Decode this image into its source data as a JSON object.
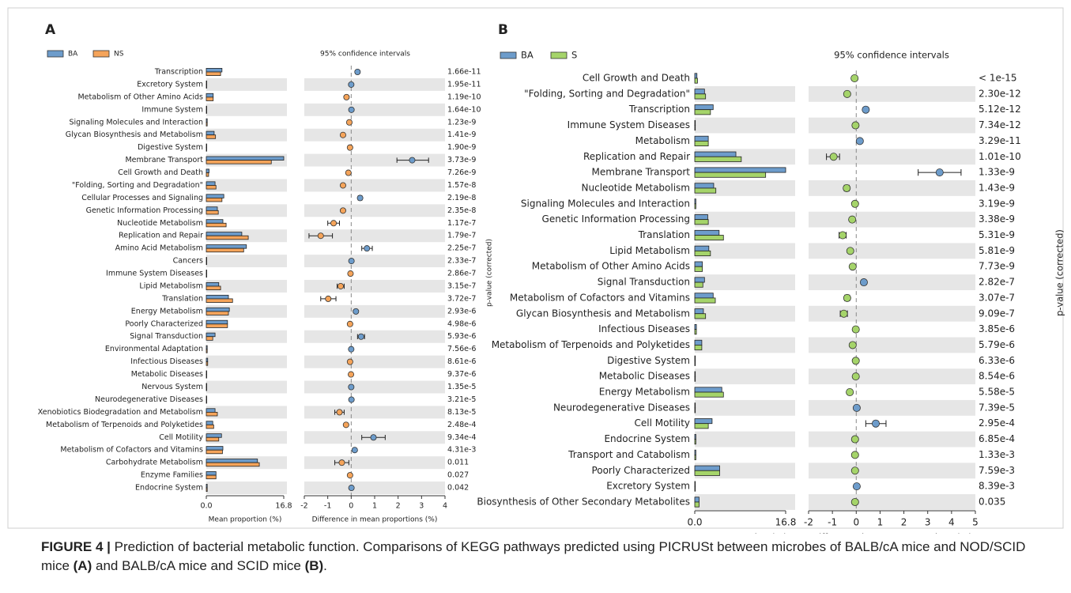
{
  "chart_data": [
    {
      "type": "extended_error_bar",
      "panel_label": "A",
      "categories": [
        "Transcription",
        "Excretory System",
        "Metabolism of Other Amino Acids",
        "Immune System",
        "Signaling Molecules and Interaction",
        "Glycan Biosynthesis and Metabolism",
        "Digestive System",
        "Membrane Transport",
        "Cell Growth and Death",
        "\"Folding, Sorting and Degradation\"",
        "Cellular Processes and Signaling",
        "Genetic Information Processing",
        "Nucleotide Metabolism",
        "Replication and Repair",
        "Amino Acid Metabolism",
        "Cancers",
        "Immune System Diseases",
        "Lipid Metabolism",
        "Translation",
        "Energy Metabolism",
        "Poorly Characterized",
        "Signal Transduction",
        "Environmental Adaptation",
        "Infectious Diseases",
        "Metabolic Diseases",
        "Nervous System",
        "Neurodegenerative Diseases",
        "Xenobiotics Biodegradation and Metabolism",
        "Metabolism of Terpenoids and Polyketides",
        "Cell Motility",
        "Metabolism of Cofactors and Vitamins",
        "Carbohydrate Metabolism",
        "Enzyme Families",
        "Endocrine System"
      ],
      "series": [
        {
          "name": "BA",
          "color": "#6d9ccb",
          "values": [
            3.4,
            0.1,
            1.5,
            0.1,
            0.2,
            1.7,
            0.1,
            16.8,
            0.6,
            1.9,
            3.8,
            2.4,
            3.6,
            7.7,
            8.7,
            0.1,
            0.1,
            2.7,
            4.8,
            5.0,
            4.6,
            1.9,
            0.2,
            0.3,
            0.1,
            0.1,
            0.1,
            1.9,
            1.4,
            3.3,
            3.6,
            11.1,
            2.1,
            0.2
          ]
        },
        {
          "name": "NS",
          "color": "#f5a45a",
          "values": [
            3.1,
            0.1,
            1.5,
            0.1,
            0.2,
            2.0,
            0.1,
            14.1,
            0.5,
            2.1,
            3.4,
            2.6,
            4.3,
            9.1,
            8.1,
            0.1,
            0.1,
            3.1,
            5.7,
            4.8,
            4.6,
            1.4,
            0.2,
            0.3,
            0.1,
            0.1,
            0.1,
            2.4,
            1.6,
            2.7,
            3.5,
            11.5,
            2.1,
            0.2
          ]
        }
      ],
      "xlim": [
        0,
        16.8
      ],
      "xticks": [
        {
          "value": 0,
          "label": "0.0"
        },
        16.8
      ],
      "xlabel": "Mean proportion (%)",
      "difference": {
        "title": "95% confidence intervals",
        "values": [
          0.27,
          0.0,
          -0.2,
          0.01,
          -0.08,
          -0.35,
          -0.05,
          2.6,
          -0.12,
          -0.35,
          0.38,
          -0.35,
          -0.75,
          -1.3,
          0.67,
          0.01,
          -0.03,
          -0.45,
          -0.98,
          0.2,
          -0.05,
          0.42,
          0.0,
          -0.05,
          -0.01,
          0.0,
          0.01,
          -0.5,
          -0.22,
          0.95,
          0.15,
          -0.4,
          -0.05,
          0.01
        ],
        "lower": [
          0.22,
          -0.02,
          -0.25,
          -0.01,
          -0.11,
          -0.4,
          -0.08,
          1.95,
          -0.15,
          -0.4,
          0.3,
          -0.4,
          -1.0,
          -1.8,
          0.45,
          -0.01,
          -0.06,
          -0.6,
          -1.3,
          0.15,
          -0.1,
          0.27,
          -0.02,
          -0.08,
          -0.03,
          -0.02,
          -0.01,
          -0.7,
          -0.27,
          0.45,
          0.1,
          -0.7,
          -0.08,
          -0.01
        ],
        "upper": [
          0.32,
          0.02,
          -0.15,
          0.03,
          -0.05,
          -0.3,
          -0.02,
          3.3,
          -0.09,
          -0.3,
          0.46,
          -0.3,
          -0.5,
          -0.8,
          0.9,
          0.03,
          0.0,
          -0.3,
          -0.65,
          0.25,
          0.0,
          0.57,
          0.02,
          -0.02,
          0.01,
          0.02,
          0.03,
          -0.3,
          -0.17,
          1.45,
          0.2,
          -0.1,
          -0.02,
          0.03
        ],
        "xlim": [
          -2,
          4
        ],
        "xticks": [
          -2,
          -1,
          0,
          1,
          2,
          3,
          4
        ],
        "xlabel": "Difference in mean proportions (%)"
      },
      "p_values": [
        "1.66e-11",
        "1.95e-11",
        "1.19e-10",
        "1.64e-10",
        "1.23e-9",
        "1.41e-9",
        "1.90e-9",
        "3.73e-9",
        "7.26e-9",
        "1.57e-8",
        "2.19e-8",
        "2.35e-8",
        "1.17e-7",
        "1.79e-7",
        "2.25e-7",
        "2.33e-7",
        "2.86e-7",
        "3.15e-7",
        "3.72e-7",
        "2.93e-6",
        "4.98e-6",
        "5.93e-6",
        "7.56e-6",
        "8.61e-6",
        "9.37e-6",
        "1.35e-5",
        "3.21e-5",
        "8.13e-5",
        "2.48e-4",
        "9.34e-4",
        "4.31e-3",
        "0.011",
        "0.027",
        "0.042"
      ],
      "p_label": "p-value (corrected)"
    },
    {
      "type": "extended_error_bar",
      "panel_label": "B",
      "categories": [
        "Cell Growth and Death",
        "\"Folding, Sorting and Degradation\"",
        "Transcription",
        "Immune System Diseases",
        "Metabolism",
        "Replication and Repair",
        "Membrane Transport",
        "Nucleotide Metabolism",
        "Signaling Molecules and Interaction",
        "Genetic Information Processing",
        "Translation",
        "Lipid Metabolism",
        "Metabolism of Other Amino Acids",
        "Signal Transduction",
        "Metabolism of Cofactors and Vitamins",
        "Glycan Biosynthesis and Metabolism",
        "Infectious Diseases",
        "Metabolism of Terpenoids and Polyketides",
        "Digestive System",
        "Metabolic Diseases",
        "Energy Metabolism",
        "Neurodegenerative Diseases",
        "Cell Motility",
        "Endocrine System",
        "Transport and Catabolism",
        "Poorly Characterized",
        "Excretory System",
        "Biosynthesis of Other Secondary Metabolites"
      ],
      "series": [
        {
          "name": "BA",
          "color": "#6d9ccb",
          "values": [
            0.4,
            1.8,
            3.4,
            0.1,
            2.5,
            7.6,
            16.8,
            3.5,
            0.2,
            2.4,
            4.5,
            2.6,
            1.4,
            1.8,
            3.4,
            1.6,
            0.3,
            1.3,
            0.1,
            0.1,
            5.0,
            0.1,
            3.2,
            0.2,
            0.2,
            4.6,
            0.1,
            0.8
          ]
        },
        {
          "name": "S",
          "color": "#a5d46a",
          "values": [
            0.5,
            2.0,
            2.9,
            0.1,
            2.5,
            8.6,
            13.1,
            3.9,
            0.2,
            2.5,
            5.3,
            2.9,
            1.4,
            1.5,
            3.8,
            2.0,
            0.3,
            1.3,
            0.1,
            0.1,
            5.3,
            0.1,
            2.5,
            0.2,
            0.2,
            4.6,
            0.1,
            0.8
          ]
        }
      ],
      "xlim": [
        0,
        16.8
      ],
      "xticks": [
        {
          "value": 0,
          "label": "0.0"
        },
        16.8
      ],
      "xlabel": "Mean proportion (%)",
      "difference": {
        "title": "95% confidence intervals",
        "values": [
          -0.07,
          -0.38,
          0.4,
          -0.03,
          0.15,
          -0.95,
          3.5,
          -0.4,
          -0.05,
          -0.17,
          -0.57,
          -0.25,
          -0.15,
          0.32,
          -0.38,
          -0.52,
          -0.02,
          -0.15,
          -0.02,
          -0.02,
          -0.27,
          0.02,
          0.82,
          -0.05,
          -0.05,
          -0.05,
          0.02,
          -0.05
        ],
        "lower": [
          -0.1,
          -0.45,
          0.33,
          -0.06,
          0.1,
          -1.25,
          2.6,
          -0.5,
          -0.08,
          -0.22,
          -0.72,
          -0.3,
          -0.2,
          0.25,
          -0.48,
          -0.67,
          -0.05,
          -0.2,
          -0.05,
          -0.05,
          -0.35,
          -0.01,
          0.4,
          -0.08,
          -0.08,
          -0.1,
          -0.01,
          -0.08
        ],
        "upper": [
          -0.04,
          -0.31,
          0.47,
          0.0,
          0.2,
          -0.7,
          4.4,
          -0.3,
          -0.02,
          -0.12,
          -0.42,
          -0.2,
          -0.1,
          0.39,
          -0.28,
          -0.37,
          0.01,
          -0.1,
          0.01,
          0.01,
          -0.19,
          0.05,
          1.25,
          -0.02,
          -0.02,
          0.0,
          0.05,
          -0.02
        ],
        "xlim": [
          -2,
          5
        ],
        "xticks": [
          -2,
          -1,
          0,
          1,
          2,
          3,
          4,
          5
        ],
        "xlabel": "Difference in mean proportions (%)"
      },
      "p_values": [
        "< 1e-15",
        "2.30e-12",
        "5.12e-12",
        "7.34e-12",
        "3.29e-11",
        "1.01e-10",
        "1.33e-9",
        "1.43e-9",
        "3.19e-9",
        "3.38e-9",
        "5.31e-9",
        "5.81e-9",
        "7.73e-9",
        "2.82e-7",
        "3.07e-7",
        "9.09e-7",
        "3.85e-6",
        "5.79e-6",
        "6.33e-6",
        "8.54e-6",
        "5.58e-5",
        "7.39e-5",
        "2.95e-4",
        "6.85e-4",
        "1.33e-3",
        "7.59e-3",
        "8.39e-3",
        "0.035"
      ],
      "p_label": "p-value (corrected)"
    }
  ],
  "caption": {
    "label": "FIGURE 4 |",
    "text1": "Prediction of bacterial metabolic function. Comparisons of KEGG pathways predicted using PICRUSt between microbes of BALB/cA mice and NOD/SCID mice",
    "ref_a": "(A)",
    "text2": "and BALB/cA mice and SCID mice",
    "ref_b": "(B)",
    "end": "."
  }
}
